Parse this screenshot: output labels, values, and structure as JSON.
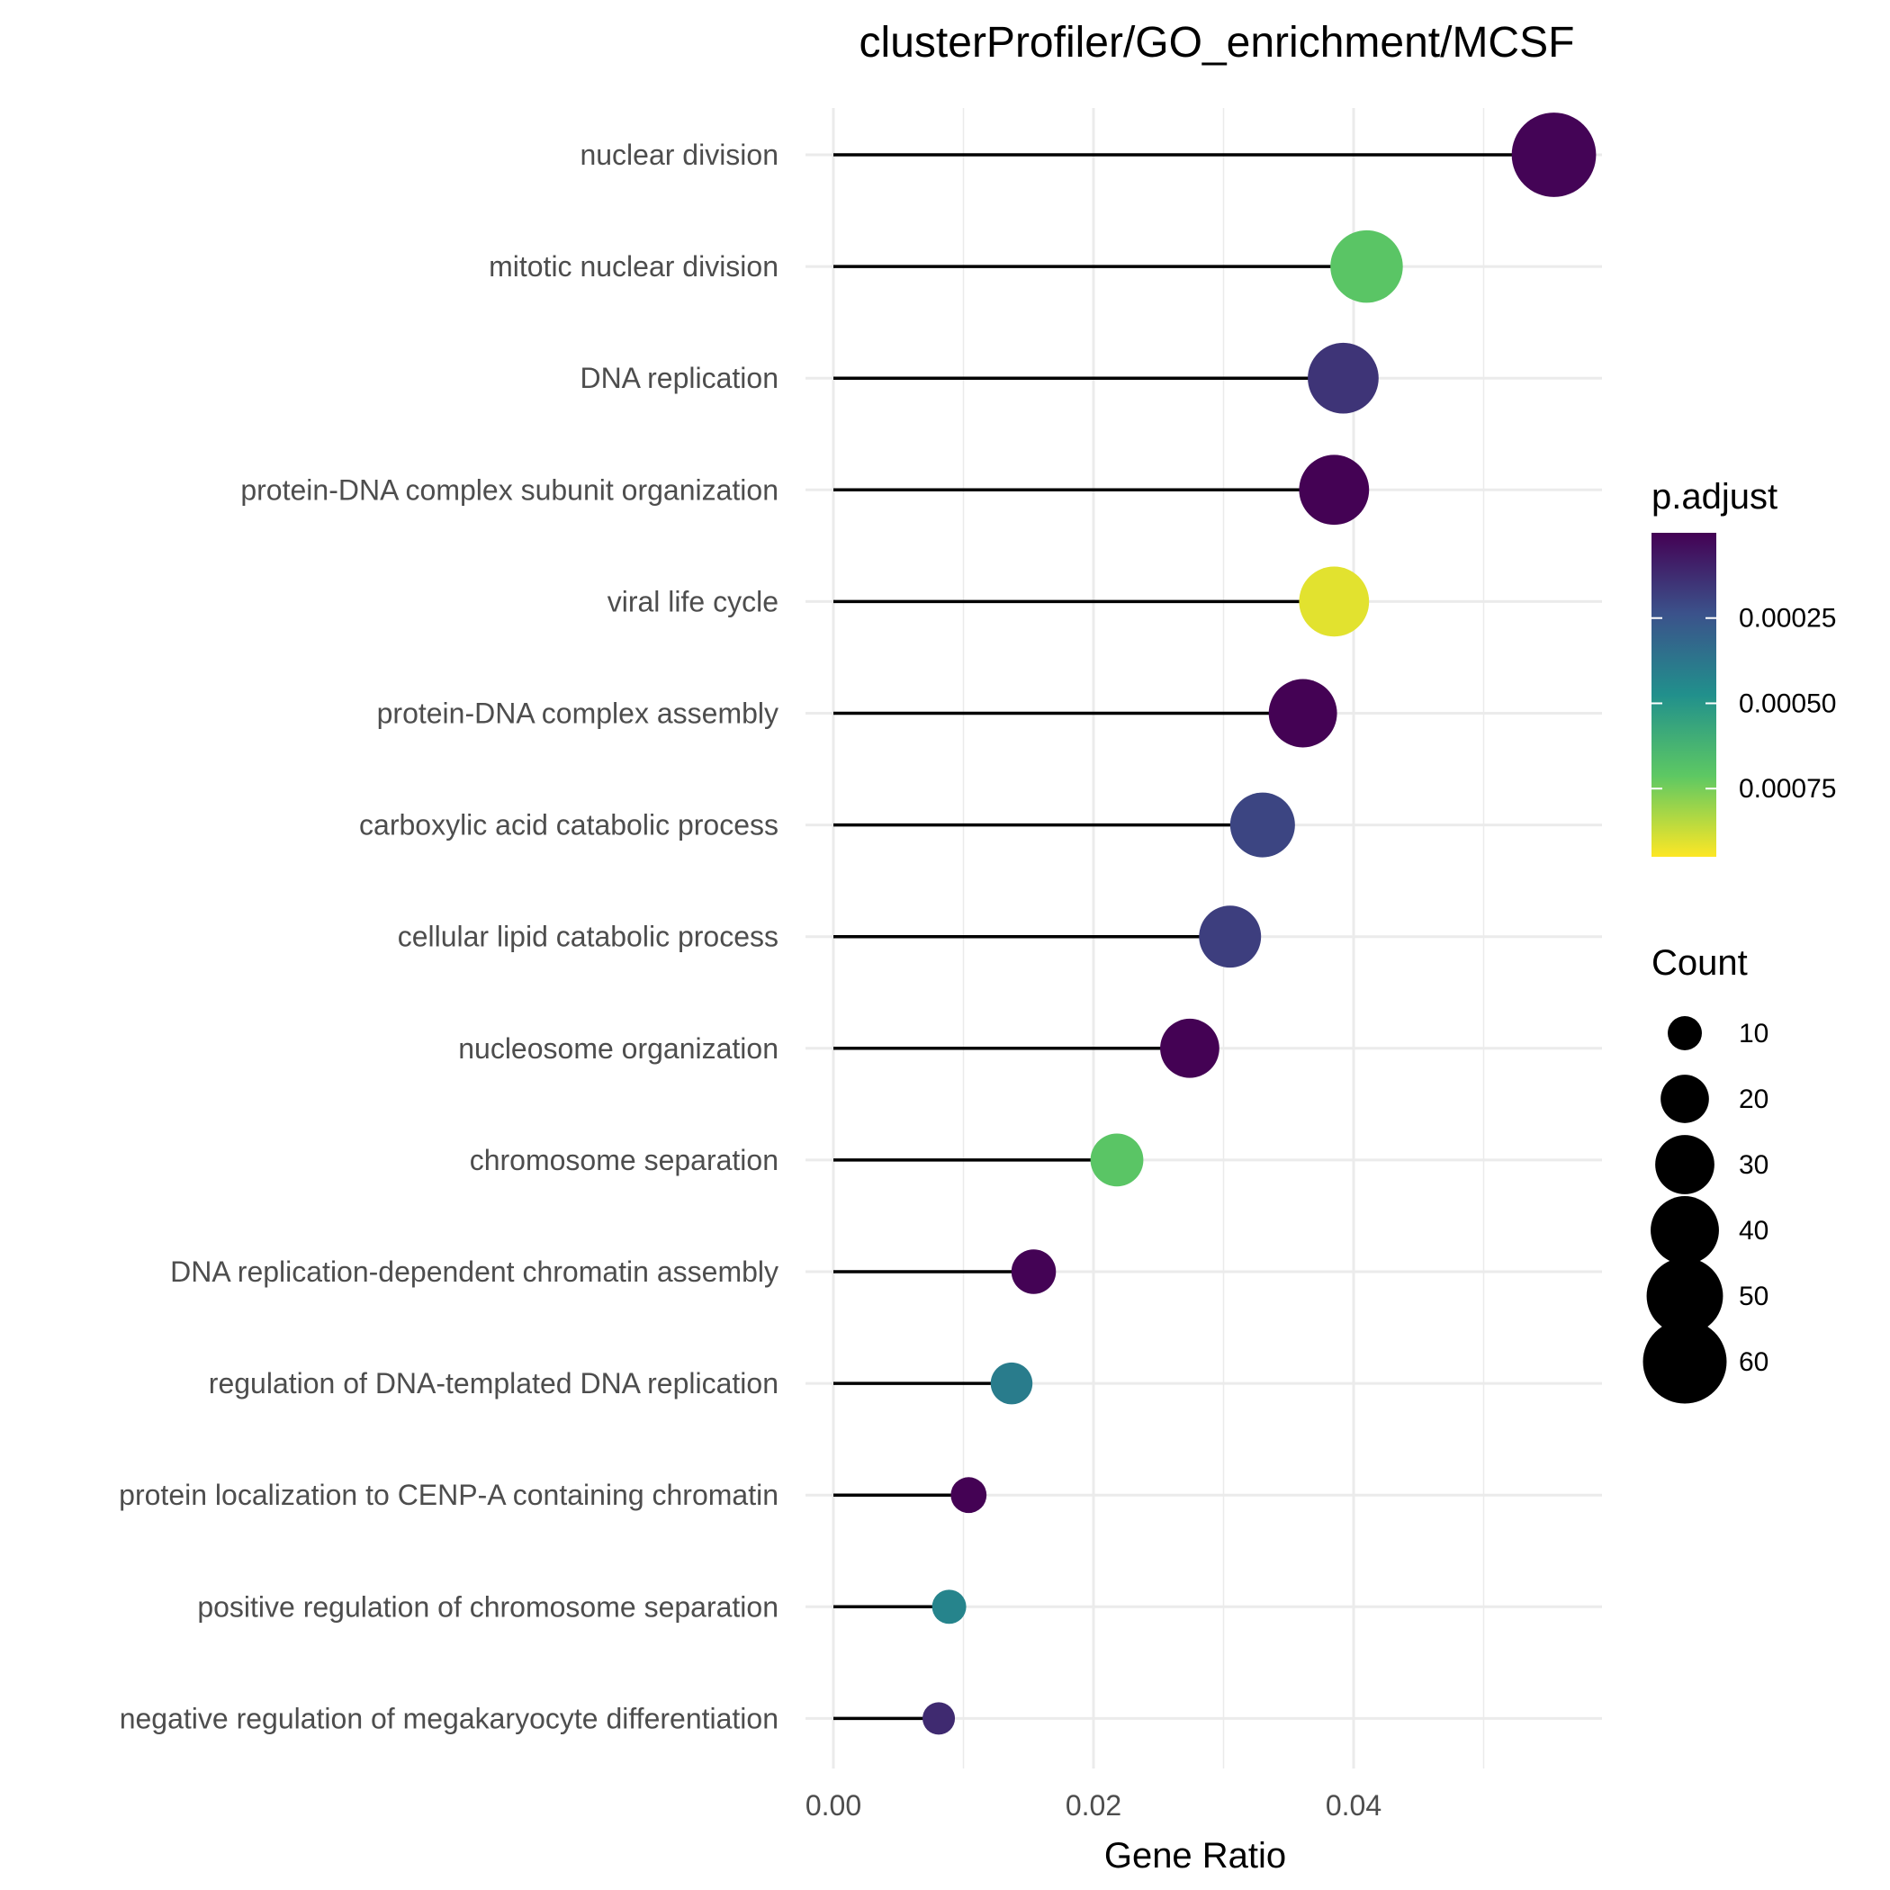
{
  "chart_data": {
    "type": "scatter",
    "title": "clusterProfiler/GO_enrichment/MCSF",
    "xlabel": "Gene Ratio",
    "ylabel": "",
    "xlim": [
      0,
      0.058
    ],
    "x_ticks": [
      "0.00",
      "0.02",
      "0.04"
    ],
    "x_tick_values": [
      0,
      0.02,
      0.04
    ],
    "x_minor_gridlines": [
      0.01,
      0.03,
      0.05
    ],
    "grid": true,
    "categories": [
      "nuclear division",
      "mitotic nuclear division",
      "DNA replication",
      "protein-DNA complex subunit organization",
      "viral life cycle",
      "protein-DNA complex assembly",
      "carboxylic acid catabolic process",
      "cellular lipid catabolic process",
      "nucleosome organization",
      "chromosome separation",
      "DNA replication-dependent chromatin assembly",
      "regulation of DNA-templated DNA replication",
      "protein localization to CENP-A containing chromatin",
      "positive regulation of chromosome separation",
      "negative regulation of megakaryocyte differentiation"
    ],
    "gene_ratio": [
      0.0554,
      0.041,
      0.0392,
      0.0385,
      0.0385,
      0.0361,
      0.033,
      0.0305,
      0.0274,
      0.0218,
      0.0154,
      0.0137,
      0.0104,
      0.0089,
      0.0081
    ],
    "count": [
      61,
      45,
      43,
      42,
      42,
      40,
      36,
      33,
      30,
      24,
      17,
      15,
      11,
      10,
      9
    ],
    "p_adjust": [
      1e-05,
      0.0007,
      0.00015,
      2e-06,
      0.00091,
      2e-06,
      0.0002,
      0.00018,
      2e-06,
      0.0007,
      5e-06,
      0.0004,
      2e-06,
      0.00043,
      0.00012
    ],
    "legend": {
      "position": "right",
      "color": {
        "title": "p.adjust",
        "range": [
          0,
          0.00095
        ],
        "reverse": true,
        "ticks": [
          0.00025,
          0.0005,
          0.00075
        ],
        "tick_labels": [
          "0.00025",
          "0.00050",
          "0.00075"
        ],
        "palette": [
          "#440154",
          "#3b528b",
          "#21908c",
          "#5dc863",
          "#fde725"
        ]
      },
      "size": {
        "title": "Count",
        "values": [
          10,
          20,
          30,
          40,
          50,
          60
        ],
        "labels": [
          "10",
          "20",
          "30",
          "40",
          "50",
          "60"
        ]
      }
    },
    "colors": {
      "stem": "#000000",
      "grid": "#ebebeb",
      "text": "#4d4d4d"
    }
  }
}
